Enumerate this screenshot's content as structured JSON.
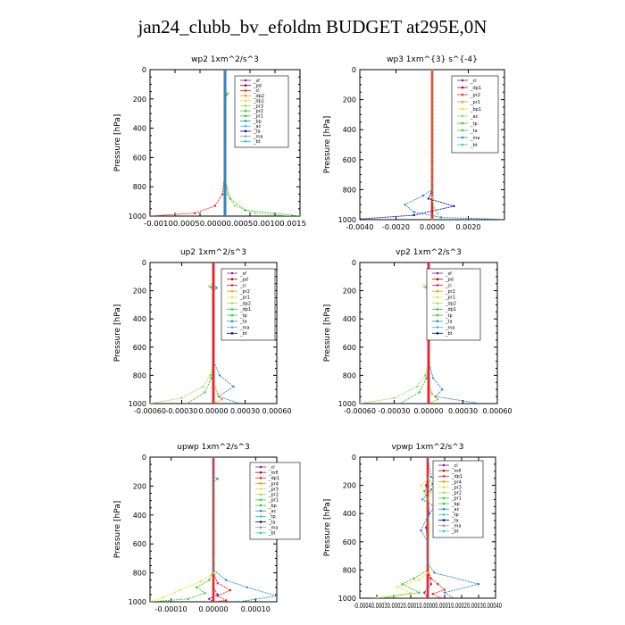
{
  "title": "jan24_clubb_bv_efoldm  BUDGET at295E,0N",
  "colors": {
    "purple": "#7a1fa2",
    "darkred": "#b00000",
    "red": "#ee2222",
    "orange": "#ff9900",
    "yellow": "#f2dc2a",
    "green": "#33cc33",
    "lightgreen": "#99dd55",
    "blue": "#2a88cc",
    "navy": "#0000aa",
    "cyan": "#22cccc",
    "gray": "#999999"
  },
  "chart_data": [
    {
      "type": "line",
      "title": "wp2   1xm^2/s^3",
      "ylabel": "Pressure  [hPa]",
      "xlim": [
        -0.0015,
        0.0015
      ],
      "ylim": [
        1000,
        0
      ],
      "xticks": [
        -0.001,
        -0.0005,
        0.0,
        0.0005,
        0.001,
        0.0015
      ],
      "xtick_labels": [
        "-0.0010",
        "-0.0005",
        "0.0000",
        "0.0005",
        "0.0010",
        "0.0015"
      ],
      "xtick_text": "-0.00100.00050.00000.00050.00100.0015",
      "yticks": [
        0,
        200,
        400,
        600,
        800,
        1000
      ],
      "legend": [
        "_sf",
        "_pd",
        "_cl",
        "_dp2",
        "_dp1",
        "_pr3",
        "_pr2",
        "_pr1",
        "_bp",
        "_ac",
        "_ta",
        "_ma",
        "_bt"
      ],
      "series": [
        {
          "name": "_sf",
          "color": "purple",
          "x": [
            0,
            0,
            0,
            0,
            0,
            0
          ],
          "y": [
            0,
            200,
            400,
            600,
            800,
            1000
          ]
        },
        {
          "name": "_pd",
          "color": "darkred",
          "x": [
            0,
            0,
            0,
            0,
            0,
            0
          ],
          "y": [
            0,
            200,
            400,
            600,
            800,
            1000
          ]
        },
        {
          "name": "_cl",
          "color": "red",
          "x": [
            0,
            0,
            0,
            -5e-05,
            -0.0002,
            -0.0006,
            -0.0015
          ],
          "y": [
            0,
            400,
            700,
            850,
            930,
            980,
            1000
          ]
        },
        {
          "name": "_pr2",
          "color": "lightgreen",
          "x": [
            0,
            0,
            6e-05,
            0,
            0,
            5e-05,
            0.0002,
            0.0006,
            0.0013
          ],
          "y": [
            0,
            140,
            160,
            200,
            700,
            850,
            930,
            980,
            1000
          ]
        },
        {
          "name": "_bp",
          "color": "green",
          "x": [
            0,
            0,
            4e-05,
            0,
            0,
            0.0001,
            0.0004,
            0.0015
          ],
          "y": [
            0,
            140,
            170,
            210,
            750,
            880,
            960,
            1000
          ]
        },
        {
          "name": "_ac",
          "color": "blue",
          "x": [
            0,
            0,
            0,
            0
          ],
          "y": [
            0,
            500,
            900,
            1000
          ]
        }
      ]
    },
    {
      "type": "line",
      "title": "wp3   1xm^{3} s^{-4}",
      "ylabel": "Pressure  [hPa]",
      "xlim": [
        -0.004,
        0.004
      ],
      "ylim": [
        1000,
        0
      ],
      "xticks": [
        -0.004,
        -0.002,
        0.0,
        0.002
      ],
      "xtick_labels": [
        "-0.0040",
        "-0.0020",
        "0.0000",
        "0.0020"
      ],
      "yticks": [
        0,
        200,
        400,
        600,
        800,
        1000
      ],
      "legend": [
        "_cl",
        "_dp1",
        "_pr2",
        "_pr1",
        "_bp1",
        "_ac",
        "_tp",
        "_ta",
        "_ma",
        "_bt"
      ],
      "series": [
        {
          "name": "_cl",
          "color": "red",
          "x": [
            0,
            0,
            0,
            0,
            0
          ],
          "y": [
            0,
            200,
            500,
            800,
            1000
          ]
        },
        {
          "name": "_ta",
          "color": "navy",
          "x": [
            0,
            0,
            -0.0002,
            0.0012,
            -0.001,
            -0.0045
          ],
          "y": [
            0,
            800,
            860,
            910,
            970,
            1000
          ]
        },
        {
          "name": "_tp",
          "color": "blue",
          "x": [
            0,
            0,
            -0.0005,
            -0.0015,
            -0.001,
            0.0005,
            0.0045
          ],
          "y": [
            0,
            800,
            840,
            900,
            950,
            985,
            1000
          ]
        },
        {
          "name": "_pr1",
          "color": "lightgreen",
          "x": [
            0,
            0,
            0.0001,
            0.0003,
            0
          ],
          "y": [
            0,
            850,
            920,
            960,
            1000
          ]
        }
      ]
    },
    {
      "type": "line",
      "title": "up2   1xm^2/s^3",
      "ylabel": "Pressure  [hPa]",
      "xlim": [
        -0.0006,
        0.0006
      ],
      "ylim": [
        1000,
        0
      ],
      "xticks": [
        -0.0006,
        -0.0003,
        0.0,
        0.0003,
        0.0006
      ],
      "xtick_labels": [
        "-0.00060",
        "-0.00030",
        "0.00000",
        "0.00030",
        "0.00060"
      ],
      "yticks": [
        0,
        200,
        400,
        600,
        800,
        1000
      ],
      "legend": [
        "_sf",
        "_pd",
        "_cl",
        "_pr2",
        "_pr1",
        "_dp2",
        "_dp1",
        "_tp",
        "_ta",
        "_ma",
        "_bt"
      ],
      "series": [
        {
          "name": "_sf",
          "color": "purple",
          "x": [
            0,
            0,
            0,
            0
          ],
          "y": [
            0,
            300,
            700,
            1000
          ]
        },
        {
          "name": "_pr1",
          "color": "lightgreen",
          "x": [
            0,
            0,
            -4e-05,
            0,
            0,
            -3e-05,
            -0.0001,
            -0.0003,
            -0.0006
          ],
          "y": [
            0,
            140,
            170,
            200,
            700,
            800,
            880,
            960,
            1000
          ]
        },
        {
          "name": "_dp1",
          "color": "green",
          "x": [
            0,
            0,
            -2e-05,
            0,
            0,
            -2e-05,
            -8e-05,
            -0.00025
          ],
          "y": [
            0,
            150,
            175,
            210,
            720,
            820,
            920,
            1000
          ]
        },
        {
          "name": "_tp",
          "color": "blue",
          "x": [
            0,
            0,
            3e-05,
            0,
            0,
            6e-05,
            0.00019,
            5e-05,
            0.00025
          ],
          "y": [
            0,
            150,
            180,
            210,
            700,
            800,
            880,
            950,
            1000
          ]
        },
        {
          "name": "_dp2",
          "color": "orange",
          "x": [
            0,
            0,
            4e-05,
            8e-05,
            0
          ],
          "y": [
            0,
            850,
            930,
            970,
            1000
          ]
        },
        {
          "name": "_cl",
          "color": "red",
          "x": [
            0,
            0,
            0,
            0
          ],
          "y": [
            0,
            400,
            800,
            1000
          ]
        }
      ]
    },
    {
      "type": "line",
      "title": "vp2   1xm^2/s^3",
      "ylabel": "Pressure  [hPa]",
      "xlim": [
        -0.0006,
        0.0006
      ],
      "ylim": [
        1000,
        0
      ],
      "xticks": [
        -0.0006,
        -0.0003,
        0.0,
        0.0003,
        0.0006
      ],
      "xtick_labels": [
        "-0.00060",
        "-0.00030",
        "0.00000",
        "0.00030",
        "0.00060"
      ],
      "yticks": [
        0,
        200,
        400,
        600,
        800,
        1000
      ],
      "legend": [
        "_sf",
        "_pd",
        "_cl",
        "_pr2",
        "_pr1",
        "_dp2",
        "_dp1",
        "_tp",
        "_ta",
        "_ma",
        "_bt"
      ],
      "series": [
        {
          "name": "_sf",
          "color": "purple",
          "x": [
            0,
            0,
            0,
            0
          ],
          "y": [
            0,
            300,
            700,
            1000
          ]
        },
        {
          "name": "_pr1",
          "color": "lightgreen",
          "x": [
            0,
            0,
            -4e-05,
            0,
            0,
            -3e-05,
            -0.0001,
            -0.0003,
            -0.0006
          ],
          "y": [
            0,
            140,
            170,
            200,
            700,
            800,
            880,
            960,
            1000
          ]
        },
        {
          "name": "_dp1",
          "color": "green",
          "x": [
            0,
            0,
            -2e-05,
            0,
            0,
            -2e-05,
            -8e-05,
            -0.00025
          ],
          "y": [
            0,
            150,
            175,
            210,
            720,
            820,
            920,
            1000
          ]
        },
        {
          "name": "_tp",
          "color": "blue",
          "x": [
            0,
            0,
            3e-05,
            0,
            0,
            4e-05,
            0.00012,
            6e-05,
            0.00045
          ],
          "y": [
            0,
            150,
            180,
            210,
            700,
            820,
            900,
            950,
            1000
          ]
        },
        {
          "name": "_dp2",
          "color": "orange",
          "x": [
            0,
            0,
            3e-05,
            8e-05,
            0
          ],
          "y": [
            0,
            850,
            930,
            970,
            1000
          ]
        },
        {
          "name": "_cl",
          "color": "red",
          "x": [
            0,
            0,
            0,
            0
          ],
          "y": [
            0,
            400,
            800,
            1000
          ]
        }
      ]
    },
    {
      "type": "line",
      "title": "upwp   1xm^2/s^3",
      "ylabel": "Pressure  [hPa]",
      "xlim": [
        -0.00015,
        0.00015
      ],
      "ylim": [
        1000,
        0
      ],
      "xticks": [
        -0.0001,
        0.0,
        0.0001
      ],
      "xtick_labels": [
        "-0.00010",
        "0.00000",
        "0.00010"
      ],
      "yticks": [
        0,
        200,
        400,
        600,
        800,
        1000
      ],
      "legend": [
        "_cl",
        "_mfl",
        "_dp1",
        "_pr4",
        "_pr3",
        "_pr2",
        "_pr1",
        "_bp",
        "_ac",
        "_tp",
        "_ta",
        "_ma",
        "_bt"
      ],
      "series": [
        {
          "name": "_mfl",
          "color": "purple",
          "x": [
            0,
            0,
            0,
            0,
            1e-05,
            -1e-05,
            0
          ],
          "y": [
            0,
            400,
            800,
            900,
            950,
            980,
            1000
          ]
        },
        {
          "name": "_cl",
          "color": "red",
          "x": [
            0,
            0,
            0,
            0,
            0
          ],
          "y": [
            0,
            300,
            600,
            850,
            1000
          ]
        },
        {
          "name": "_pr3",
          "color": "red",
          "x": [
            0,
            0,
            1e-05,
            4e-05,
            1e-05,
            3e-05,
            0
          ],
          "y": [
            0,
            800,
            870,
            920,
            960,
            990,
            1000
          ]
        },
        {
          "name": "_pr1",
          "color": "yellow",
          "x": [
            0,
            0,
            -3e-05,
            -8e-05,
            -0.00012,
            -0.00015
          ],
          "y": [
            0,
            800,
            860,
            920,
            970,
            1000
          ]
        },
        {
          "name": "_bp",
          "color": "green",
          "x": [
            0,
            0,
            -1e-05,
            -4e-05,
            -2e-05,
            -6e-05,
            -0.00015
          ],
          "y": [
            0,
            780,
            850,
            900,
            940,
            980,
            1000
          ]
        },
        {
          "name": "_ta",
          "color": "blue",
          "x": [
            0,
            0,
            1e-05,
            0,
            0,
            3e-05,
            8e-05,
            0.00015,
            6e-05
          ],
          "y": [
            0,
            130,
            150,
            170,
            780,
            850,
            900,
            960,
            1000
          ]
        }
      ]
    },
    {
      "type": "line",
      "title": "vpwp   1xm^2/s^3",
      "ylabel": "Pressure  [hPa]",
      "xlim": [
        -0.0004,
        0.0004
      ],
      "ylim": [
        1000,
        0
      ],
      "xticks": [
        -0.0004,
        -0.0003,
        -0.0002,
        -0.0001,
        0.0,
        0.0001,
        0.0002,
        0.0003,
        0.0004
      ],
      "xtick_labels": [
        "-0.00040",
        "-0.00030",
        "-0.00020",
        "-0.00010",
        "0.00000",
        "0.00010",
        "0.00020",
        "0.00030",
        "0.00040"
      ],
      "xtick_text": "-0.00040.00030.00020.00010.00000.00010.00020.00030.00040",
      "yticks": [
        0,
        200,
        400,
        600,
        800,
        1000
      ],
      "legend": [
        "_cl",
        "_mfl",
        "_dp1",
        "_pr4",
        "_pr3",
        "_pr2",
        "_pr1",
        "_bp",
        "_ac",
        "_tp",
        "_ta",
        "_ma",
        "_bt"
      ],
      "series": [
        {
          "name": "_mfl",
          "color": "purple",
          "x": [
            0,
            0,
            -1e-05,
            0,
            1e-05,
            -1e-05,
            0,
            0,
            2e-05,
            -2e-05,
            0
          ],
          "y": [
            0,
            150,
            200,
            300,
            400,
            500,
            600,
            800,
            900,
            960,
            1000
          ]
        },
        {
          "name": "_cl",
          "color": "red",
          "x": [
            0,
            0,
            0,
            0
          ],
          "y": [
            0,
            400,
            800,
            1000
          ]
        },
        {
          "name": "_pr2",
          "color": "yellow",
          "x": [
            0,
            0,
            -4e-05,
            2e-05,
            0,
            0,
            -5e-05,
            -0.00018,
            -0.0001,
            -0.0003
          ],
          "y": [
            0,
            150,
            200,
            250,
            300,
            820,
            870,
            920,
            960,
            1000
          ]
        },
        {
          "name": "_bp",
          "color": "green",
          "x": [
            0,
            0,
            3e-05,
            -2e-05,
            0,
            0,
            -8e-05,
            -0.00015,
            -5e-05,
            -0.00028
          ],
          "y": [
            0,
            150,
            190,
            240,
            300,
            800,
            860,
            900,
            960,
            1000
          ]
        },
        {
          "name": "_pr1",
          "color": "red",
          "x": [
            0,
            0,
            2e-05,
            6e-05,
            0.0001,
            3e-05,
            8e-05
          ],
          "y": [
            0,
            800,
            860,
            900,
            940,
            970,
            1000
          ]
        },
        {
          "name": "_ta",
          "color": "blue",
          "x": [
            0,
            2e-05,
            8e-05,
            2e-05,
            -3e-05,
            4e-05,
            0,
            -4e-05,
            0,
            0,
            4e-05,
            0.0003,
            0.0001,
            0.00015
          ],
          "y": [
            0,
            140,
            180,
            230,
            300,
            350,
            420,
            520,
            600,
            750,
            820,
            900,
            960,
            1000
          ]
        }
      ]
    }
  ]
}
